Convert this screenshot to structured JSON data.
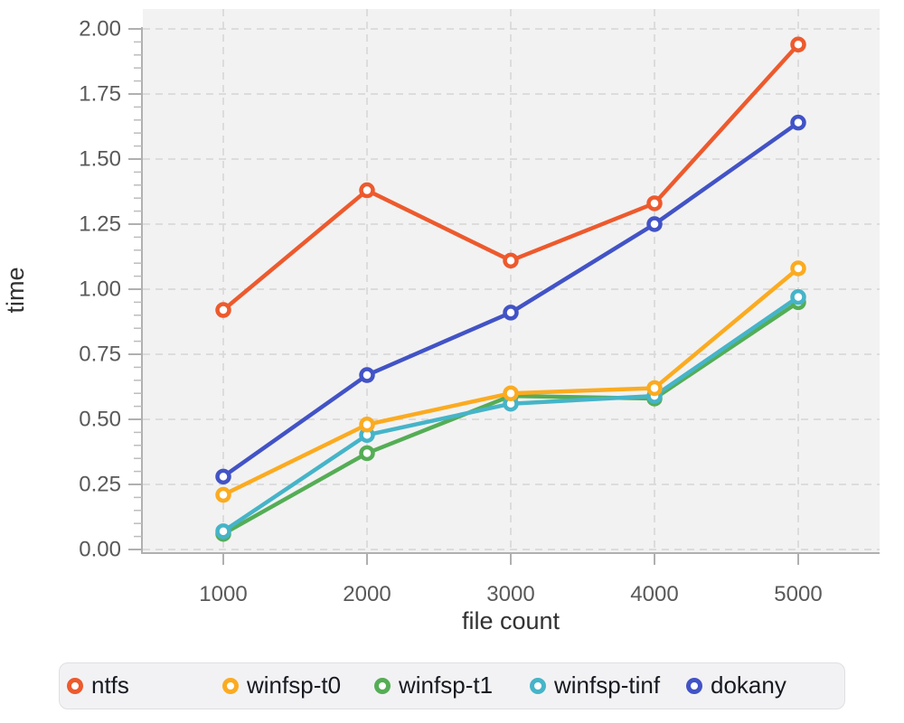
{
  "chart_data": {
    "type": "line",
    "title": "",
    "xlabel": "file count",
    "ylabel": "time",
    "x": [
      1000,
      2000,
      3000,
      4000,
      5000
    ],
    "xticks": [
      "1000",
      "2000",
      "3000",
      "4000",
      "5000"
    ],
    "yticks": [
      "0.00",
      "0.25",
      "0.50",
      "0.75",
      "1.00",
      "1.25",
      "1.50",
      "1.75",
      "2.00"
    ],
    "ylim": [
      0,
      2
    ],
    "grid": true,
    "grid_style": "dashed",
    "legend_position": "bottom",
    "plot_background": "#f2f2f2",
    "gridline_color": "#d9d9d9",
    "axis_color": "#b0b0b0",
    "series": [
      {
        "name": "ntfs",
        "color": "#ed5a2d",
        "values": [
          0.92,
          1.38,
          1.11,
          1.33,
          1.94
        ]
      },
      {
        "name": "winfsp-t0",
        "color": "#fbab20",
        "values": [
          0.21,
          0.48,
          0.6,
          0.62,
          1.08
        ]
      },
      {
        "name": "winfsp-t1",
        "color": "#55ad55",
        "values": [
          0.06,
          0.37,
          0.59,
          0.58,
          0.95
        ]
      },
      {
        "name": "winfsp-tinf",
        "color": "#46b4c8",
        "values": [
          0.07,
          0.44,
          0.56,
          0.59,
          0.97
        ]
      },
      {
        "name": "dokany",
        "color": "#4253c6",
        "values": [
          0.28,
          0.67,
          0.91,
          1.25,
          1.64
        ]
      }
    ]
  }
}
